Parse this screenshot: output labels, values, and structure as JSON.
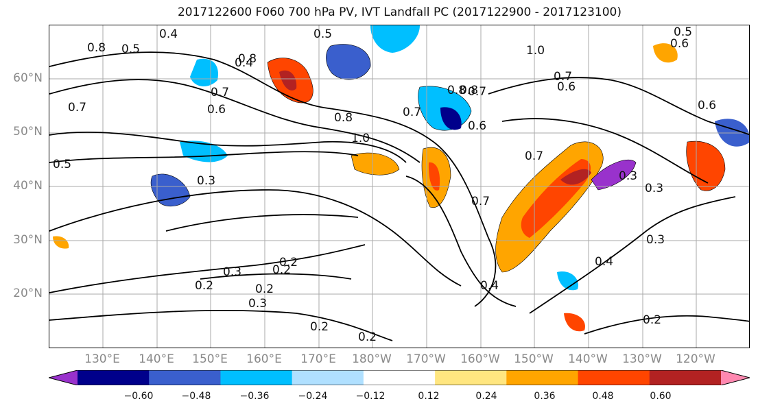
{
  "title": "2017122600 F060 700 hPa PV, IVT Landfall PC (2017122900 - 2017123100)",
  "lat_labels": [
    "60°N",
    "50°N",
    "40°N",
    "30°N",
    "20°N"
  ],
  "lon_labels": [
    "130°E",
    "140°E",
    "150°E",
    "160°E",
    "170°E",
    "180°W",
    "170°W",
    "160°W",
    "150°W",
    "140°W",
    "130°W",
    "120°W"
  ],
  "colorbar": {
    "labels": [
      "−0.60",
      "−0.48",
      "−0.36",
      "−0.24",
      "−0.12",
      "0.12",
      "0.24",
      "0.36",
      "0.48",
      "0.60"
    ],
    "colors": [
      "#9932cc",
      "#00008b",
      "#3a5fcd",
      "#00bfff",
      "#b0e0ff",
      "#ffffff",
      "#ffe680",
      "#ffa500",
      "#ff4500",
      "#b22222",
      "#ff88b0"
    ]
  },
  "contour_labels": [
    "0.8",
    "0.5",
    "0.4",
    "0.5",
    "1.0",
    "0.5",
    "0.6",
    "0.4",
    "0.8",
    "0.7",
    "0.6",
    "0.7",
    "0.8",
    "1.0",
    "0.8",
    "0.7",
    "0.7",
    "0.6",
    "0.7",
    "0.8",
    "0.5",
    "0.3",
    "0.3",
    "0.3",
    "0.2",
    "0.2",
    "0.3",
    "0.2",
    "0.3",
    "0.2",
    "0.4",
    "0.4",
    "0.2",
    "0.2",
    "0.6",
    "0.7",
    "0.7",
    "0.3",
    "0.6",
    "0.2"
  ]
}
